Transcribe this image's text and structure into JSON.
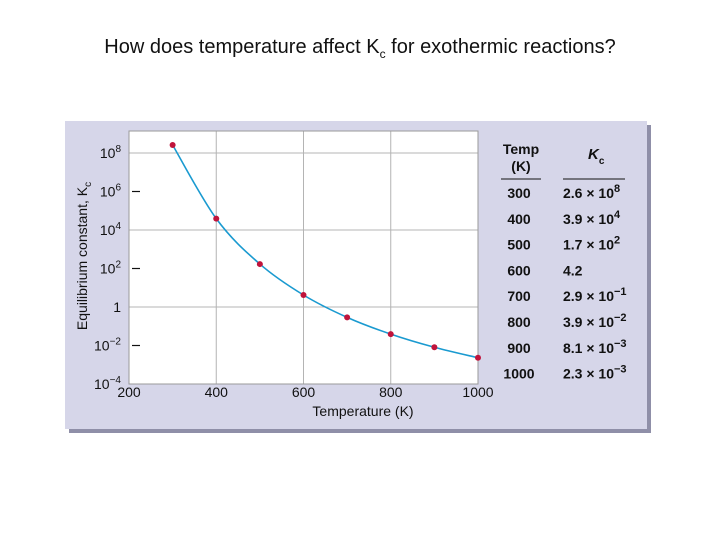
{
  "slide": {
    "title": "How does temperature affect K",
    "title_sub": "c",
    "title_tail": " for exothermic reactions?"
  },
  "chart_data": {
    "type": "scatter",
    "series": [
      {
        "x": [
          300,
          400,
          500,
          600,
          700,
          800,
          900,
          1000
        ],
        "y": [
          260000000.0,
          39000.0,
          170,
          4.2,
          0.29,
          0.039,
          0.0081,
          0.0023
        ]
      }
    ],
    "xlabel": "Temperature (K)",
    "ylabel": "Equilibrium constant, K",
    "ylabel_sub": "c",
    "xlim": [
      200,
      1000
    ],
    "ylim": [
      0.0001,
      1000000000
    ],
    "yscale": "log",
    "grid": true,
    "marker_color": "#c0143c",
    "curve_color": "#1a9ad0",
    "x_ticks": [
      200,
      400,
      600,
      800,
      1000
    ],
    "y_ticks": [
      {
        "value": 0.0001,
        "base": "10",
        "exp": "−4"
      },
      {
        "value": 0.01,
        "base": "10",
        "exp": "−2"
      },
      {
        "value": 1,
        "base": "1",
        "exp": ""
      },
      {
        "value": 100,
        "base": "10",
        "exp": "2"
      },
      {
        "value": 10000,
        "base": "10",
        "exp": "4"
      },
      {
        "value": 1000000,
        "base": "10",
        "exp": "6"
      },
      {
        "value": 100000000,
        "base": "10",
        "exp": "8"
      }
    ]
  },
  "table": {
    "header_temp_line1": "Temp",
    "header_temp_line2": "(K)",
    "header_k": "K",
    "header_k_sub": "c",
    "rows": [
      {
        "temp": "300",
        "mant": "2.6",
        "exp": "8"
      },
      {
        "temp": "400",
        "mant": "3.9",
        "exp": "4"
      },
      {
        "temp": "500",
        "mant": "1.7",
        "exp": "2"
      },
      {
        "temp": "600",
        "mant": "4.2",
        "exp": ""
      },
      {
        "temp": "700",
        "mant": "2.9",
        "exp": "−1"
      },
      {
        "temp": "800",
        "mant": "3.9",
        "exp": "−2"
      },
      {
        "temp": "900",
        "mant": "8.1",
        "exp": "−3"
      },
      {
        "temp": "1000",
        "mant": "2.3",
        "exp": "−3"
      }
    ]
  }
}
